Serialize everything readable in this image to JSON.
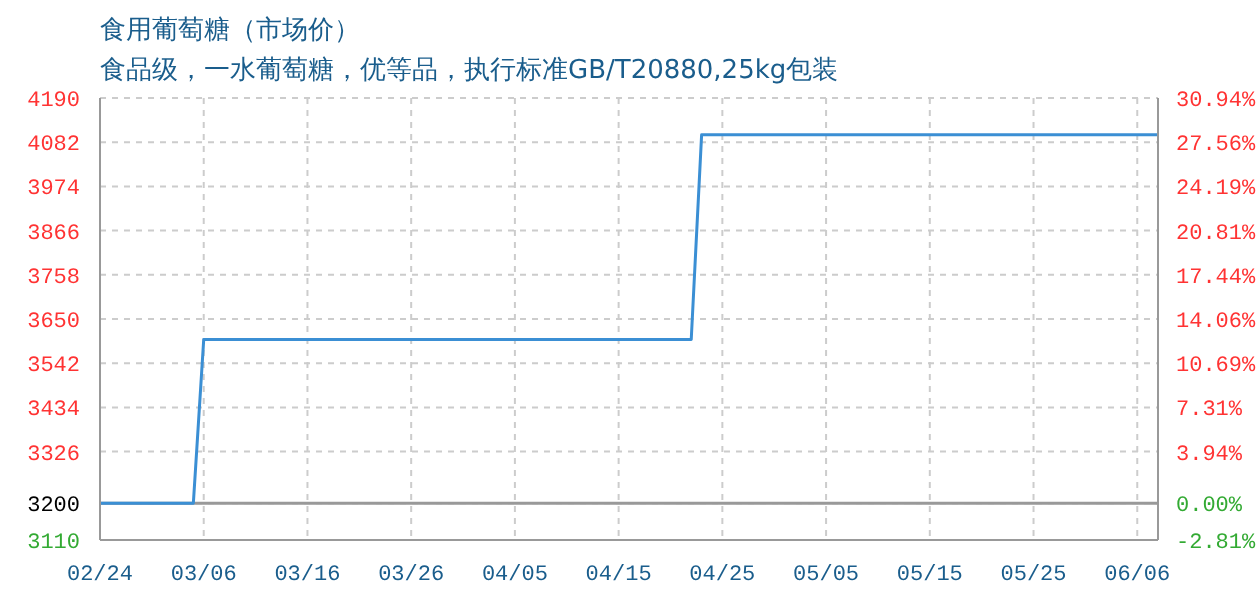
{
  "chart_data": {
    "type": "line",
    "title": "食用葡萄糖（市场价）",
    "subtitle": "食品级，一水葡萄糖，优等品，执行标准GB/T20880,25kg包装",
    "x": [
      "--02-24",
      "--03-05",
      "--03-06",
      "--04-22",
      "--04-23",
      "--06-06"
    ],
    "series": [
      {
        "color": "#3b8fd4",
        "values": [
          3200,
          3200,
          3600,
          3600,
          4100,
          4100
        ]
      }
    ],
    "xlim": [
      "--02-24",
      "--06-06"
    ],
    "xticks": [
      {
        "value": "--02-24",
        "label": "02/24"
      },
      {
        "value": "--03-06",
        "label": "03/06"
      },
      {
        "value": "--03-16",
        "label": "03/16"
      },
      {
        "value": "--03-26",
        "label": "03/26"
      },
      {
        "value": "--04-05",
        "label": "04/05"
      },
      {
        "value": "--04-15",
        "label": "04/15"
      },
      {
        "value": "--04-25",
        "label": "04/25"
      },
      {
        "value": "--05-05",
        "label": "05/05"
      },
      {
        "value": "--05-15",
        "label": "05/15"
      },
      {
        "value": "--05-25",
        "label": "05/25"
      },
      {
        "value": "--06-04",
        "label": "06/06"
      }
    ],
    "ylim": [
      3110,
      4190
    ],
    "yticks": [
      3110,
      3200,
      3326,
      3434,
      3542,
      3650,
      3758,
      3866,
      3974,
      4082,
      4190
    ],
    "y2lim": [
      -2.81,
      30.94
    ],
    "y2ticks": [
      {
        "value": -2.81,
        "label": "-2.81%"
      },
      {
        "value": 0,
        "label": "0.00%"
      },
      {
        "value": 3.94,
        "label": "3.94%"
      },
      {
        "value": 7.31,
        "label": "7.31%"
      },
      {
        "value": 10.69,
        "label": "10.69%"
      },
      {
        "value": 14.06,
        "label": "14.06%"
      },
      {
        "value": 17.44,
        "label": "17.44%"
      },
      {
        "value": 20.81,
        "label": "20.81%"
      },
      {
        "value": 24.19,
        "label": "24.19%"
      },
      {
        "value": 27.56,
        "label": "27.56%"
      },
      {
        "value": 30.94,
        "label": "30.94%"
      }
    ],
    "ref_lines": [
      {
        "axis": "y",
        "value": 3200,
        "color": "#999999"
      }
    ],
    "grid": true,
    "marker": "none",
    "line_style": "solid"
  }
}
